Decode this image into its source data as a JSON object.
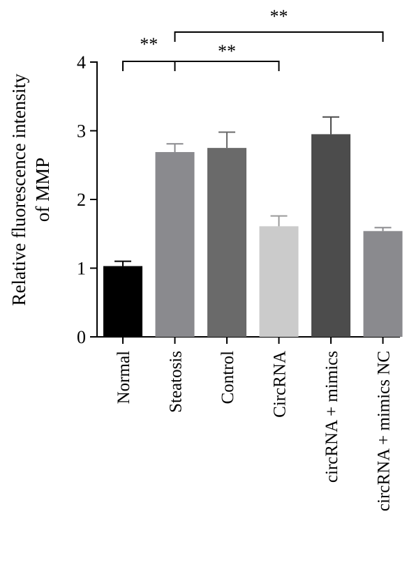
{
  "chart_data": {
    "type": "bar",
    "ylabel_line1": "Relative fluorescence intensity",
    "ylabel_line2": "of MMP",
    "xlabel": "",
    "ylim": [
      0,
      4
    ],
    "yticks": [
      "0",
      "1",
      "2",
      "3",
      "4"
    ],
    "categories": [
      "Normal",
      "Steatosis",
      "Control",
      "CircRNA",
      "circRNA + mimics",
      "circRNA + mimics NC"
    ],
    "values": [
      1.03,
      2.69,
      2.75,
      1.61,
      2.95,
      1.54
    ],
    "errors": [
      0.07,
      0.12,
      0.23,
      0.15,
      0.25,
      0.05
    ],
    "bar_colors": [
      "#000000",
      "#8a8a8e",
      "#6a6a6a",
      "#cbcbcb",
      "#4c4c4c",
      "#8a8a8e"
    ],
    "significance": [
      {
        "from": 0,
        "to": 1,
        "label": "**"
      },
      {
        "from": 1,
        "to": 3,
        "label": "**"
      },
      {
        "from": 1,
        "to": 5,
        "label": "**"
      }
    ]
  }
}
